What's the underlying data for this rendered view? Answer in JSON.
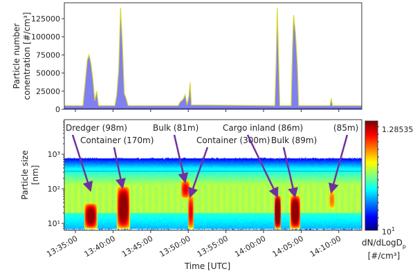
{
  "chart_data": [
    {
      "type": "area",
      "ylabel_lines": [
        "Particle number",
        "conentration [#/cm³]"
      ],
      "ylim": [
        0,
        147000
      ],
      "yticks": [
        0,
        25000,
        50000,
        75000,
        100000,
        125000
      ],
      "ytick_labels": [
        "0",
        "25000",
        "50000",
        "75000",
        "100000",
        "125000"
      ],
      "fill_color": "#8080f0",
      "line_color": "#d8d830",
      "x": [
        "13:33:30",
        "13:36:00",
        "13:36:20",
        "13:36:35",
        "13:36:50",
        "13:37:05",
        "13:37:20",
        "13:37:35",
        "13:37:50",
        "13:38:05",
        "13:40:15",
        "13:40:30",
        "13:40:45",
        "13:41:00",
        "13:41:15",
        "13:41:30",
        "13:41:45",
        "13:42:00",
        "13:48:40",
        "13:48:55",
        "13:49:20",
        "13:49:35",
        "13:49:50",
        "13:50:05",
        "13:50:15",
        "13:50:25",
        "14:01:30",
        "14:01:40",
        "14:01:50",
        "14:02:00",
        "14:02:10",
        "14:03:40",
        "14:03:50",
        "14:04:00",
        "14:04:15",
        "14:04:30",
        "14:04:40",
        "14:08:50",
        "14:09:00",
        "14:09:10",
        "14:13:00"
      ],
      "y": [
        5000,
        5000,
        40000,
        68000,
        75000,
        62000,
        40000,
        12000,
        25000,
        5000,
        5000,
        20000,
        55000,
        140000,
        90000,
        22000,
        15000,
        5000,
        5000,
        10000,
        14000,
        20000,
        6000,
        18000,
        37000,
        6000,
        5000,
        60000,
        140000,
        70000,
        5000,
        5000,
        80000,
        130000,
        105000,
        60000,
        5000,
        5000,
        15000,
        5000,
        5000
      ]
    },
    {
      "type": "heatmap",
      "ylabel_lines": [
        "Particle size",
        "[nm]"
      ],
      "xlabel": "Time [UTC]",
      "yscale": "log",
      "ylim": [
        6.3,
        10000
      ],
      "yticks": [
        10,
        100,
        1000
      ],
      "ytick_labels": [
        "10¹",
        "10²",
        "10³"
      ],
      "xlim": [
        "13:33:30",
        "14:13:00"
      ],
      "xticks": [
        "13:35:00",
        "13:40:00",
        "13:45:00",
        "13:50:00",
        "13:55:00",
        "14:00:00",
        "14:05:00",
        "14:10:00"
      ],
      "colormap": "jet",
      "colorbar": {
        "label_main": "dN/dLogD",
        "label_sub": "p",
        "label_unit": "[#/cm³]",
        "top_label": "1.28535",
        "bottom_label": "10",
        "bottom_exp": "1"
      },
      "events": [
        {
          "start": "13:36:20",
          "end": "13:37:40",
          "dmin": 8,
          "dmax": 35,
          "intensity": 0.82
        },
        {
          "start": "13:40:40",
          "end": "13:42:00",
          "dmin": 8,
          "dmax": 110,
          "intensity": 0.85
        },
        {
          "start": "13:49:10",
          "end": "13:50:00",
          "dmin": 60,
          "dmax": 160,
          "intensity": 0.72
        },
        {
          "start": "13:50:05",
          "end": "13:50:30",
          "dmin": 8,
          "dmax": 60,
          "intensity": 0.72
        },
        {
          "start": "14:01:35",
          "end": "14:02:05",
          "dmin": 8,
          "dmax": 60,
          "intensity": 0.9
        },
        {
          "start": "14:03:40",
          "end": "14:04:40",
          "dmin": 8,
          "dmax": 60,
          "intensity": 0.86
        },
        {
          "start": "14:08:50",
          "end": "14:09:15",
          "dmin": 30,
          "dmax": 80,
          "intensity": 0.62
        }
      ],
      "annotations": [
        {
          "text": "Dredger (98m)",
          "target_time": "13:37:00",
          "target_size": 90
        },
        {
          "text": "Container (170m)",
          "target_time": "13:41:15",
          "target_size": 110
        },
        {
          "text": "Bulk (81m)",
          "target_time": "13:49:35",
          "target_size": 160
        },
        {
          "text": "Container (300m)",
          "target_time": "13:50:15",
          "target_size": 60
        },
        {
          "text": "Cargo inland (86m)",
          "target_time": "14:01:50",
          "target_size": 60
        },
        {
          "text": "Bulk (89m)",
          "target_time": "14:04:10",
          "target_size": 60
        },
        {
          "text": "(85m)",
          "target_time": "14:09:00",
          "target_size": 80
        }
      ],
      "arrow_color": "#7030a0"
    }
  ]
}
